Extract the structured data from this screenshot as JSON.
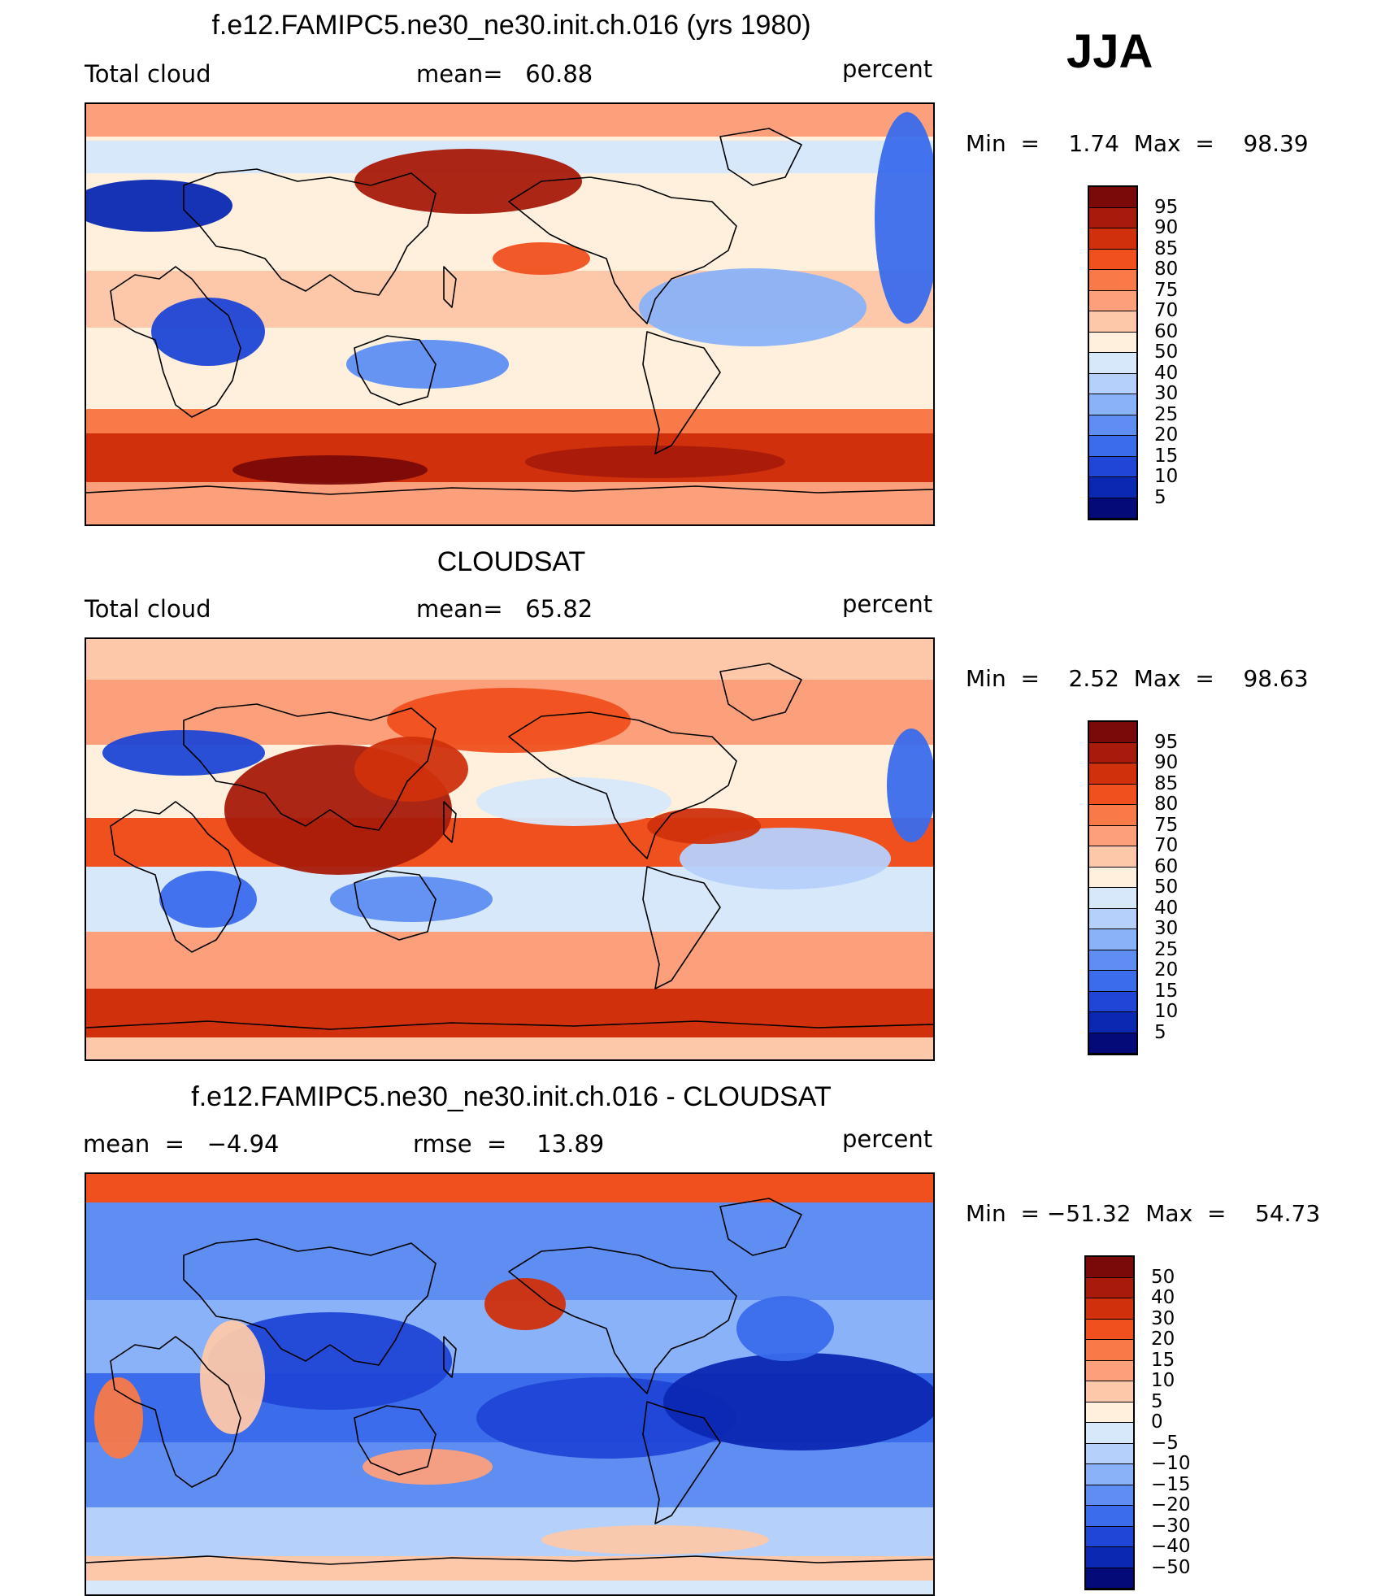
{
  "season": "JJA",
  "panels": [
    {
      "id": "model",
      "title": "f.e12.FAMIPC5.ne30_ne30.init.ch.016 (yrs 1980)",
      "left_text": "Total cloud",
      "center_text": "mean=   60.88",
      "right_text": "percent",
      "minmax_text": "Min  =    1.74  Max  =    98.39",
      "map_variant": "model"
    },
    {
      "id": "obs",
      "title": "CLOUDSAT",
      "left_text": "Total cloud",
      "center_text": "mean=   65.82",
      "right_text": "percent",
      "minmax_text": "Min  =    2.52  Max  =    98.63",
      "map_variant": "obs"
    },
    {
      "id": "diff",
      "title": "f.e12.FAMIPC5.ne30_ne30.init.ch.016 - CLOUDSAT",
      "left_text": "mean  =   −4.94",
      "center_text": "rmse  =    13.89",
      "right_text": "percent",
      "minmax_text": "Min  = −51.32  Max  =    54.73",
      "map_variant": "diff"
    }
  ],
  "colorbars": {
    "abs": {
      "labels": [
        "95",
        "90",
        "85",
        "80",
        "75",
        "70",
        "60",
        "50",
        "40",
        "30",
        "25",
        "20",
        "15",
        "10",
        "5"
      ],
      "colors": [
        "#7a0a0a",
        "#a81a0a",
        "#d0300c",
        "#f0501e",
        "#f87a48",
        "#fca07c",
        "#fdc8aa",
        "#fef0dc",
        "#d7e8fb",
        "#b5d0fb",
        "#8ab2f8",
        "#5e8ef2",
        "#3a6cec",
        "#1f46d6",
        "#0b28b2",
        "#040a78"
      ]
    },
    "diff": {
      "labels": [
        "50",
        "40",
        "30",
        "20",
        "15",
        "10",
        "5",
        "0",
        "−5",
        "−10",
        "−15",
        "−20",
        "−30",
        "−40",
        "−50"
      ],
      "colors": [
        "#7a0a0a",
        "#a81a0a",
        "#d0300c",
        "#f0501e",
        "#f87a48",
        "#fca07c",
        "#fdc8aa",
        "#fef0dc",
        "#d7e8fb",
        "#b5d0fb",
        "#8ab2f8",
        "#5e8ef2",
        "#3a6cec",
        "#1f46d6",
        "#0b28b2",
        "#040a78"
      ]
    }
  }
}
